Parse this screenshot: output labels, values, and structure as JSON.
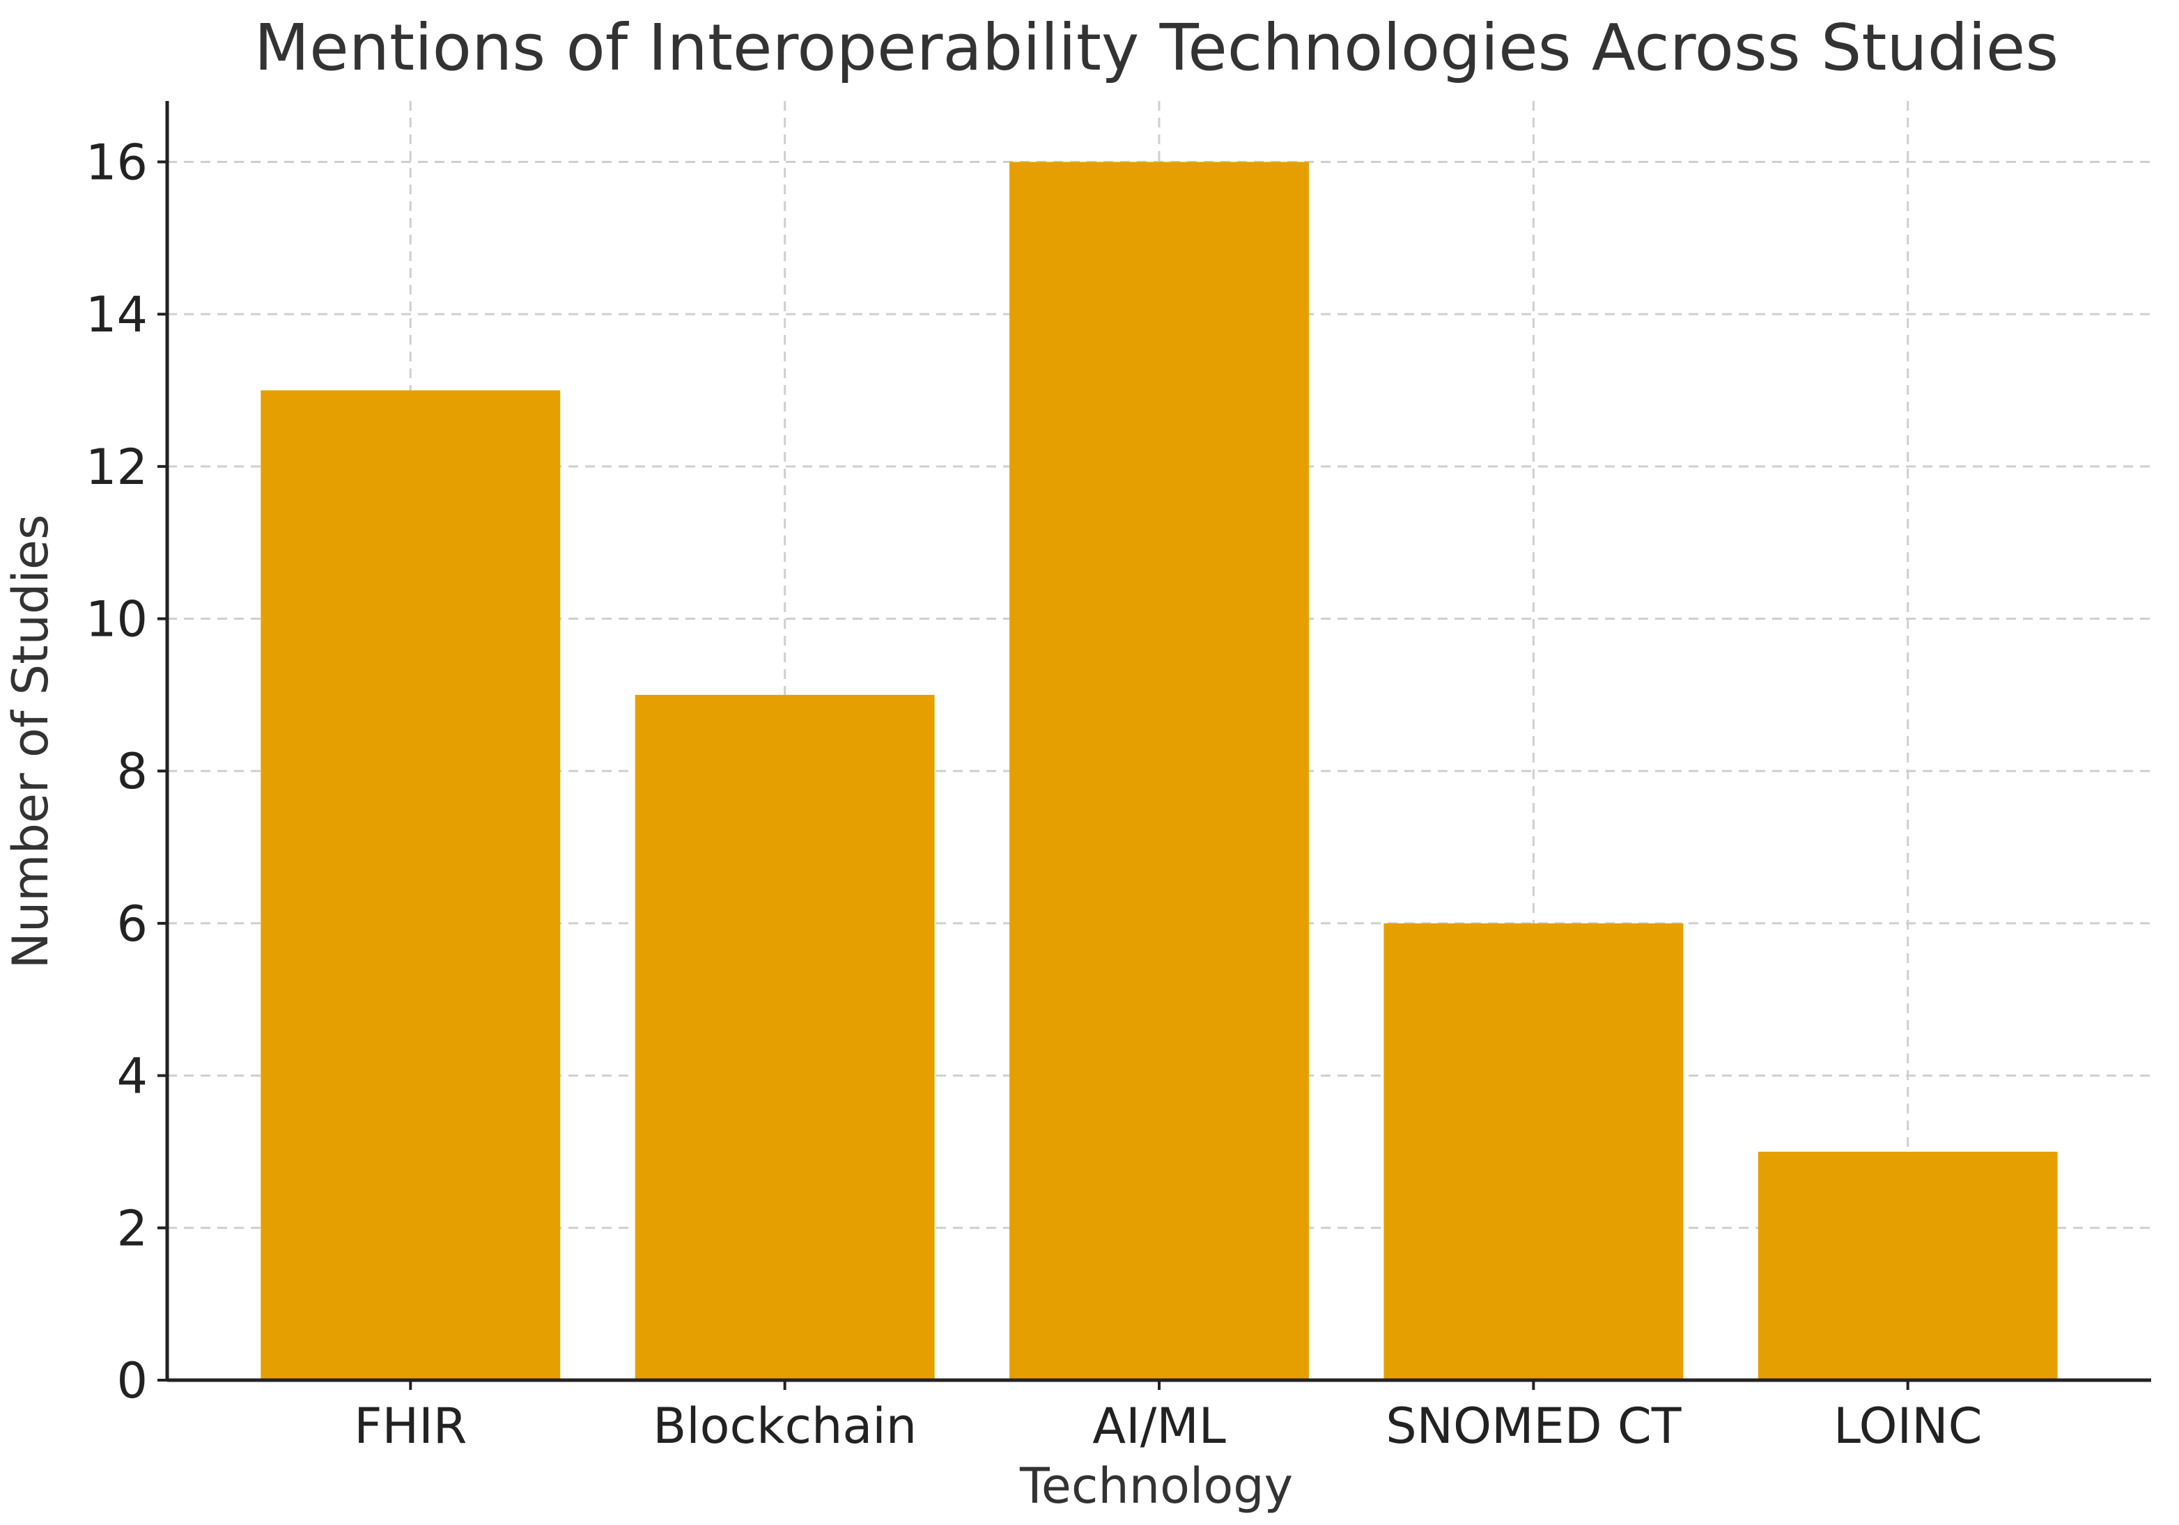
{
  "chart_data": {
    "type": "bar",
    "title": "Mentions of Interoperability Technologies Across Studies",
    "xlabel": "Technology",
    "ylabel": "Number of Studies",
    "categories": [
      "FHIR",
      "Blockchain",
      "AI/ML",
      "SNOMED CT",
      "LOINC"
    ],
    "values": [
      13,
      9,
      16,
      6,
      3
    ],
    "ylim": [
      0,
      16.8
    ],
    "yticks": [
      0,
      2,
      4,
      6,
      8,
      10,
      12,
      14,
      16
    ],
    "grid": true,
    "bar_color": "#E5A000"
  }
}
